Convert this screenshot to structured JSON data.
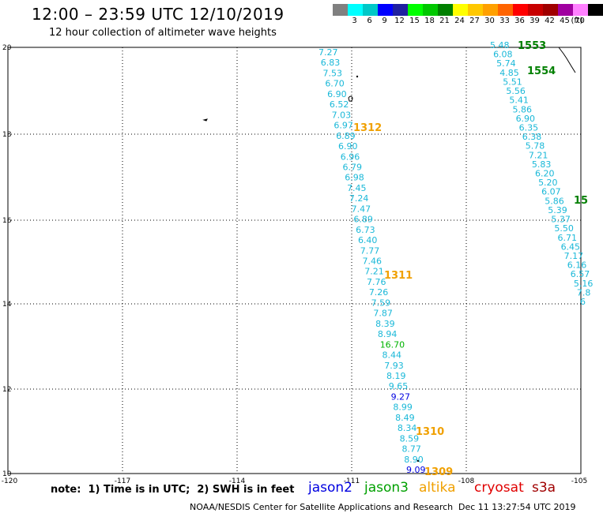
{
  "header": {
    "title": "12:00 – 23:59 UTC 12/10/2019",
    "subtitle": "12 hour collection of altimeter wave heights"
  },
  "colorbar": {
    "unit": "(ft)",
    "colors": [
      "#808080",
      "#00ffff",
      "#00c8c8",
      "#0000ff",
      "#2020a0",
      "#00ff00",
      "#00c800",
      "#008000",
      "#ffff00",
      "#ffc800",
      "#ffa000",
      "#ff6400",
      "#ff0000",
      "#c80000",
      "#a00000",
      "#a000a0",
      "#ff80ff",
      "#000000"
    ],
    "labels": [
      "3",
      "6",
      "9",
      "12",
      "15",
      "18",
      "21",
      "24",
      "27",
      "30",
      "33",
      "36",
      "39",
      "42",
      "45",
      "70"
    ]
  },
  "map": {
    "lon_labels": [
      "-120",
      "-117",
      "-114",
      "-111",
      "-108",
      "-105"
    ],
    "lat_labels": [
      "20",
      "18",
      "16",
      "14",
      "12",
      "10"
    ],
    "track_main": [
      {
        "v": "7.27",
        "c": "#1ab8d8"
      },
      {
        "v": "6.83",
        "c": "#1ab8d8"
      },
      {
        "v": "7.53",
        "c": "#1ab8d8"
      },
      {
        "v": "6.70",
        "c": "#1ab8d8"
      },
      {
        "v": "6.90",
        "c": "#1ab8d8"
      },
      {
        "v": "6.52",
        "c": "#1ab8d8"
      },
      {
        "v": "7.03",
        "c": "#1ab8d8"
      },
      {
        "v": "6.97",
        "c": "#1ab8d8"
      },
      {
        "v": "6.89",
        "c": "#1ab8d8"
      },
      {
        "v": "6.90",
        "c": "#1ab8d8"
      },
      {
        "v": "6.96",
        "c": "#1ab8d8"
      },
      {
        "v": "6.79",
        "c": "#1ab8d8"
      },
      {
        "v": "6.98",
        "c": "#1ab8d8"
      },
      {
        "v": "7.45",
        "c": "#1ab8d8"
      },
      {
        "v": "7.24",
        "c": "#1ab8d8"
      },
      {
        "v": "7.47",
        "c": "#1ab8d8"
      },
      {
        "v": "6.89",
        "c": "#1ab8d8"
      },
      {
        "v": "6.73",
        "c": "#1ab8d8"
      },
      {
        "v": "6.40",
        "c": "#1ab8d8"
      },
      {
        "v": "7.77",
        "c": "#1ab8d8"
      },
      {
        "v": "7.46",
        "c": "#1ab8d8"
      },
      {
        "v": "7.21",
        "c": "#1ab8d8"
      },
      {
        "v": "7.76",
        "c": "#1ab8d8"
      },
      {
        "v": "7.26",
        "c": "#1ab8d8"
      },
      {
        "v": "7.59",
        "c": "#1ab8d8"
      },
      {
        "v": "7.87",
        "c": "#1ab8d8"
      },
      {
        "v": "8.39",
        "c": "#1ab8d8"
      },
      {
        "v": "8.94",
        "c": "#1ab8d8"
      },
      {
        "v": "16.70",
        "c": "#00b400"
      },
      {
        "v": "8.44",
        "c": "#1ab8d8"
      },
      {
        "v": "7.93",
        "c": "#1ab8d8"
      },
      {
        "v": "8.19",
        "c": "#1ab8d8"
      },
      {
        "v": "9.65",
        "c": "#1ab8d8"
      },
      {
        "v": "9.27",
        "c": "#0000e0"
      },
      {
        "v": "8.99",
        "c": "#1ab8d8"
      },
      {
        "v": "8.49",
        "c": "#1ab8d8"
      },
      {
        "v": "8.34",
        "c": "#1ab8d8"
      },
      {
        "v": "8.59",
        "c": "#1ab8d8"
      },
      {
        "v": "8.77",
        "c": "#1ab8d8"
      },
      {
        "v": "8.90",
        "c": "#1ab8d8"
      },
      {
        "v": "9.09",
        "c": "#0000e0"
      }
    ],
    "track_right": [
      "5.48",
      "6.08",
      "5.74",
      "4.85",
      "5.51",
      "5.56",
      "5.41",
      "5.86",
      "6.90",
      "6.35",
      "6.38",
      "5.78",
      "7.21",
      "5.83",
      "6.20",
      "5.20",
      "6.07",
      "5.86",
      "5.39",
      "5.37",
      "5.50",
      "6.71",
      "6.45",
      "7.17",
      "6.16",
      "6.57",
      "5.16",
      "7.8",
      "6"
    ],
    "passes": [
      {
        "label": "1312",
        "color": "#f0a000"
      },
      {
        "label": "1311",
        "color": "#f0a000"
      },
      {
        "label": "1310",
        "color": "#f0a000"
      },
      {
        "label": "1309",
        "color": "#f0a000"
      },
      {
        "label": "1553",
        "color": "#008000"
      },
      {
        "label": "1554",
        "color": "#008000"
      },
      {
        "label": "15",
        "color": "#008000"
      }
    ]
  },
  "footer": {
    "note": "note:  1) Time is in UTC;  2) SWH is in feet",
    "legend": [
      {
        "name": "jason2",
        "color": "#0000e0"
      },
      {
        "name": "jason3",
        "color": "#00a000"
      },
      {
        "name": "altika",
        "color": "#f0a000"
      },
      {
        "name": "cryosat",
        "color": "#e00000"
      },
      {
        "name": "s3a",
        "color": "#a00000"
      }
    ],
    "credit": "NOAA/NESDIS Center for Satellite Applications and Research",
    "timestamp": "Dec 11 13:27:54 UTC 2019"
  }
}
